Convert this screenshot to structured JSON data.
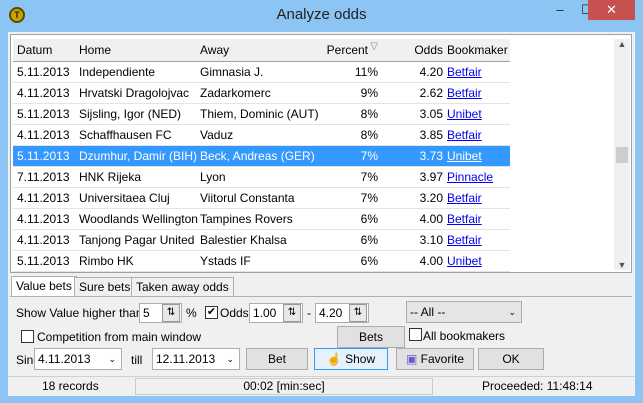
{
  "window": {
    "title": "Analyze odds",
    "icon": "app-logo-icon"
  },
  "grid": {
    "columns": [
      "Datum",
      "Home",
      "Away",
      "Percent",
      "Odds",
      "Bookmaker"
    ],
    "sort_indicator": "sort-descending-icon",
    "rows": [
      [
        "5.11.2013",
        "Independiente",
        "Gimnasia J.",
        "11%",
        "4.20",
        "Betfair"
      ],
      [
        "4.11.2013",
        "Hrvatski Dragolojvac",
        "Zadarkomerc",
        "9%",
        "2.62",
        "Betfair"
      ],
      [
        "5.11.2013",
        "Sijsling, Igor (NED)",
        "Thiem, Dominic (AUT)",
        "8%",
        "3.05",
        "Unibet"
      ],
      [
        "4.11.2013",
        "Schaffhausen FC",
        "Vaduz",
        "8%",
        "3.85",
        "Betfair"
      ],
      [
        "5.11.2013",
        "Dzumhur, Damir (BIH)",
        "Beck, Andreas (GER)",
        "7%",
        "3.73",
        "Unibet"
      ],
      [
        "7.11.2013",
        "HNK Rijeka",
        "Lyon",
        "7%",
        "3.97",
        "Pinnacle"
      ],
      [
        "4.11.2013",
        "Universitaea Cluj",
        "Viitorul Constanta",
        "7%",
        "3.20",
        "Betfair"
      ],
      [
        "4.11.2013",
        "Woodlands Wellington",
        "Tampines Rovers",
        "6%",
        "4.00",
        "Betfair"
      ],
      [
        "4.11.2013",
        "Tanjong Pagar United",
        "Balestier Khalsa",
        "6%",
        "3.10",
        "Betfair"
      ],
      [
        "5.11.2013",
        "Rimbo HK",
        "Ystads IF",
        "6%",
        "4.00",
        "Unibet"
      ]
    ],
    "selected_row": 4
  },
  "tabs": [
    "Value bets",
    "Sure bets",
    "Taken away odds"
  ],
  "filters": {
    "show_value_label": "Show Value higher than",
    "value": "5",
    "percent": "%",
    "odds_label": "Odds",
    "odds_checked": true,
    "odds_min": "1.00",
    "dash": "-",
    "odds_max": "4.20",
    "bookmaker_select": "-- All --",
    "competition_label": "Competition from main window",
    "competition_checked": false,
    "bets_button": "Bets",
    "all_bookmakers_label": "All bookmakers",
    "all_bookmakers_checked": false,
    "since_label": "Sinc",
    "since": "4.11.2013",
    "till_label": "till",
    "till": "12.11.2013",
    "bet_button": "Bet",
    "show_button": "Show",
    "favorite_button": "Favorite",
    "ok_button": "OK"
  },
  "status": {
    "records": "18 records",
    "elapsed": "00:02  [min:sec]",
    "proceeded": "Proceeded: 11:48:14"
  }
}
